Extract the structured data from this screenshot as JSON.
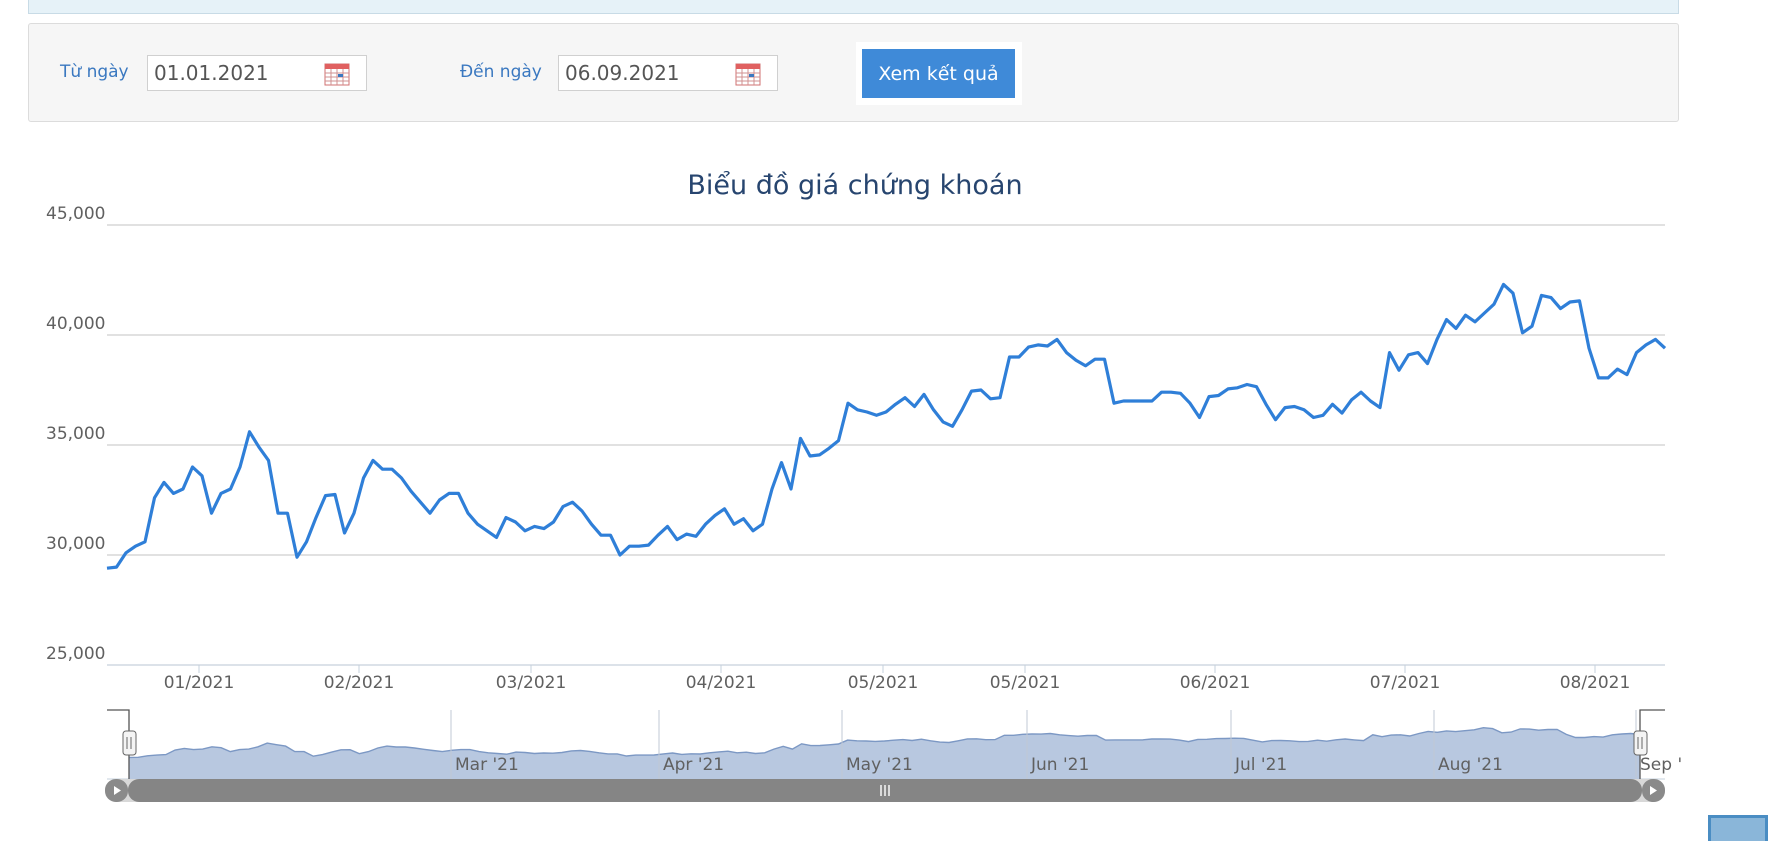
{
  "filter": {
    "from_label": "Từ ngày",
    "from_value": "01.01.2021",
    "to_label": "Đến ngày",
    "to_value": "06.09.2021",
    "submit_label": "Xem kết quả"
  },
  "icons": {
    "calendar": "calendar-icon",
    "scroll_left": "arrow-left-icon",
    "scroll_right": "arrow-right-icon",
    "scroll_grip": "grip-icon",
    "navigator_handle": "handle-icon"
  },
  "colors": {
    "line": "#2f7fd8",
    "navigator_fill": "#b8c8e0",
    "navigator_line": "#7c98c4",
    "button": "#3f8ad8",
    "title": "#27456f",
    "label_blue": "#3a78c0"
  },
  "chart_data": {
    "type": "line",
    "title": "Biểu đồ giá chứng khoán",
    "ylim": [
      25000,
      45000
    ],
    "y_ticks": [
      "45,000",
      "40,000",
      "35,000",
      "30,000",
      "25,000"
    ],
    "x_ticks": [
      "01/2021",
      "02/2021",
      "03/2021",
      "04/2021",
      "05/2021",
      "05/2021",
      "06/2021",
      "07/2021",
      "08/2021"
    ],
    "navigator_labels": [
      "Mar '21",
      "Apr '21",
      "May '21",
      "Jun '21",
      "Jul '21",
      "Aug '21",
      "Sep '"
    ],
    "grid": true,
    "series": [
      {
        "values": [
          29400,
          29450,
          30100,
          30400,
          30600,
          32600,
          33300,
          32800,
          33000,
          34000,
          33600,
          31900,
          32800,
          33000,
          34000,
          35600,
          34900,
          34300,
          31900,
          31900,
          29900,
          30600,
          31700,
          32700,
          32750,
          31000,
          31900,
          33500,
          34300,
          33900,
          33900,
          33500,
          32900,
          32400,
          31900,
          32500,
          32800,
          32800,
          31900,
          31400,
          31100,
          30800,
          31700,
          31500,
          31100,
          31300,
          31200,
          31500,
          32200,
          32400,
          32000,
          31400,
          30900,
          30900,
          30000,
          30400,
          30400,
          30450,
          30900,
          31300,
          30700,
          30950,
          30850,
          31400,
          31800,
          32100,
          31400,
          31650,
          31100,
          31400,
          33000,
          34200,
          33000,
          35300,
          34500,
          34550,
          34850,
          35200,
          36900,
          36600,
          36500,
          36350,
          36500,
          36850,
          37150,
          36750,
          37300,
          36600,
          36050,
          35850,
          36600,
          37450,
          37500,
          37100,
          37150,
          39000,
          39000,
          39450,
          39550,
          39500,
          39800,
          39200,
          38850,
          38600,
          38900,
          38900,
          36900,
          37000,
          37000,
          37000,
          37000,
          37400,
          37400,
          37350,
          36900,
          36250,
          37200,
          37250,
          37550,
          37600,
          37750,
          37650,
          36850,
          36150,
          36700,
          36750,
          36600,
          36250,
          36350,
          36850,
          36450,
          37050,
          37400,
          37000,
          36700,
          39200,
          38400,
          39100,
          39200,
          38700,
          39800,
          40700,
          40300,
          40900,
          40600,
          41000,
          41400,
          42300,
          41900,
          40100,
          40400,
          41800,
          41700,
          41200,
          41500,
          41550,
          39400,
          38050,
          38050,
          38450,
          38200,
          39200,
          39550,
          39800,
          39400
        ]
      }
    ]
  }
}
